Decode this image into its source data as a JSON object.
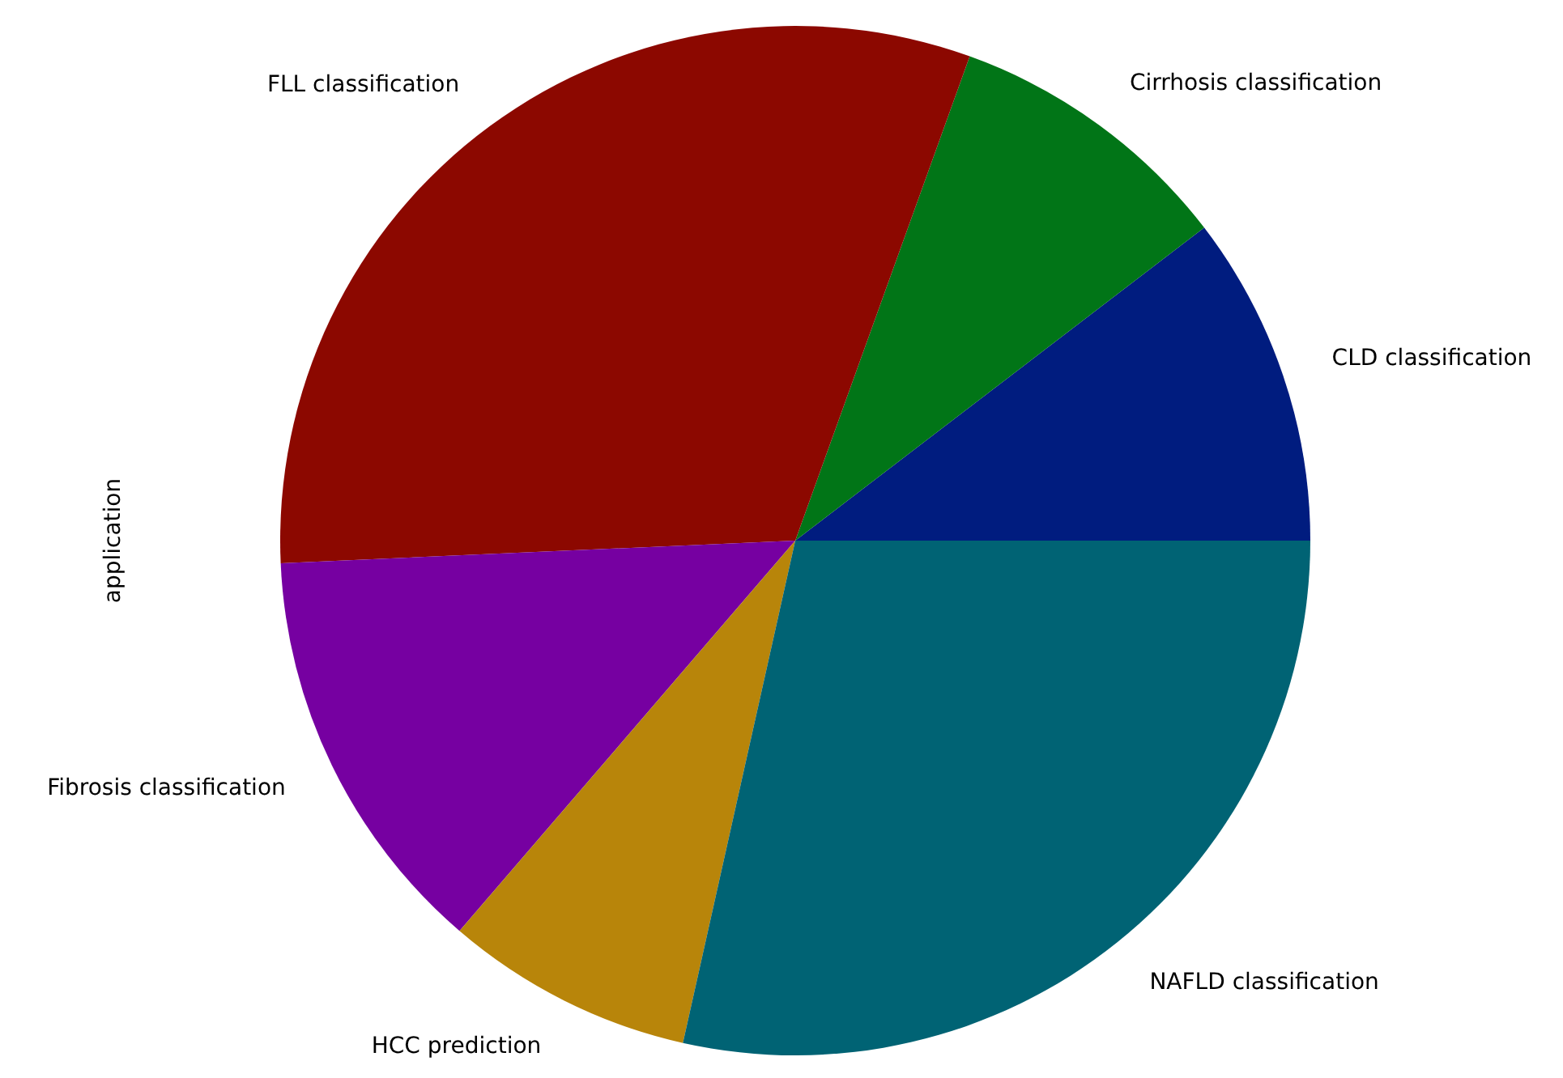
{
  "chart_data": {
    "type": "pie",
    "ylabel": "application",
    "categories": [
      "CLD classification",
      "Cirrhosis classification",
      "FLL classification",
      "Fibrosis classification",
      "HCC prediction",
      "NAFLD classification"
    ],
    "values": [
      10.4,
      9.1,
      31.2,
      13.0,
      7.8,
      28.5
    ],
    "colors": [
      "#001c7f",
      "#017517",
      "#8c0800",
      "#7600a1",
      "#b8850a",
      "#006374"
    ]
  }
}
